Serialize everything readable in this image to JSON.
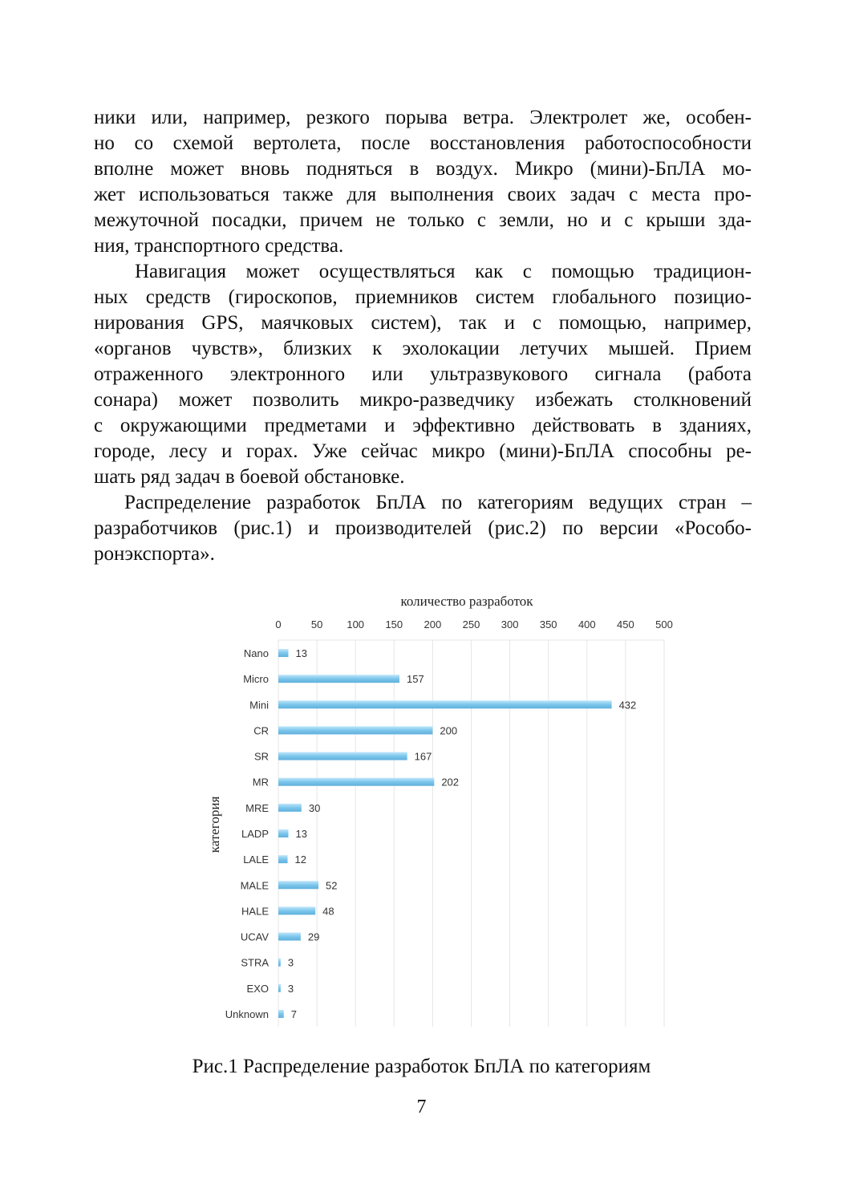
{
  "paragraphs": [
    {
      "indent": false,
      "lines": [
        "ники или, например, резкого порыва ветра. Электролет же, особен-",
        "но со схемой вертолета, после восстановления работоспособности",
        "вполне может вновь подняться в воздух. Микро (мини)-БпЛА мо-",
        "жет использоваться также для выполнения своих задач с места про-",
        "межуточной посадки, причем не только с земли, но и с крыши зда-",
        "ния, транспортного средства."
      ]
    },
    {
      "indent": true,
      "lines": [
        "Навигация может осуществляться как с помощью традицион-",
        "ных средств (гироскопов, приемников систем глобального позицио-",
        "нирования GPS, маячковых систем), так и с помощью, например,",
        "«органов чувств», близких к эхолокации летучих мышей. Прием",
        "отраженного электронного или ультразвукового сигнала (работа",
        "сонара) может позволить микро-разведчику избежать столкновений",
        "с окружающими предметами и эффективно действовать в зданиях,",
        "городе, лесу и горах. Уже сейчас микро (мини)-БпЛА способны ре-",
        "шать ряд задач в боевой обстановке."
      ]
    },
    {
      "indent": true,
      "lines": [
        "Распределение разработок БпЛА по категориям ведущих стран –",
        "разработчиков (рис.1) и производителей (рис.2) по версии «Рособо-",
        "ронэкспорта»."
      ]
    }
  ],
  "chart_data": {
    "type": "bar",
    "orientation": "horizontal",
    "xlabel": "количество разработок",
    "ylabel": "категория",
    "xlim": [
      0,
      500
    ],
    "xticks": [
      0,
      50,
      100,
      150,
      200,
      250,
      300,
      350,
      400,
      450,
      500
    ],
    "x_axis_position": "top",
    "grid": true,
    "bar_color": "#7cc6ec",
    "categories": [
      "Nano",
      "Micro",
      "Mini",
      "CR",
      "SR",
      "MR",
      "MRE",
      "LADP",
      "LALE",
      "MALE",
      "HALE",
      "UCAV",
      "STRA",
      "EXO",
      "Unknown"
    ],
    "values": [
      13,
      157,
      432,
      200,
      167,
      202,
      30,
      13,
      12,
      52,
      48,
      29,
      3,
      3,
      7
    ],
    "data_labels": true
  },
  "caption": "Рис.1 Распределение разработок БпЛА по категориям",
  "page_number": "7"
}
